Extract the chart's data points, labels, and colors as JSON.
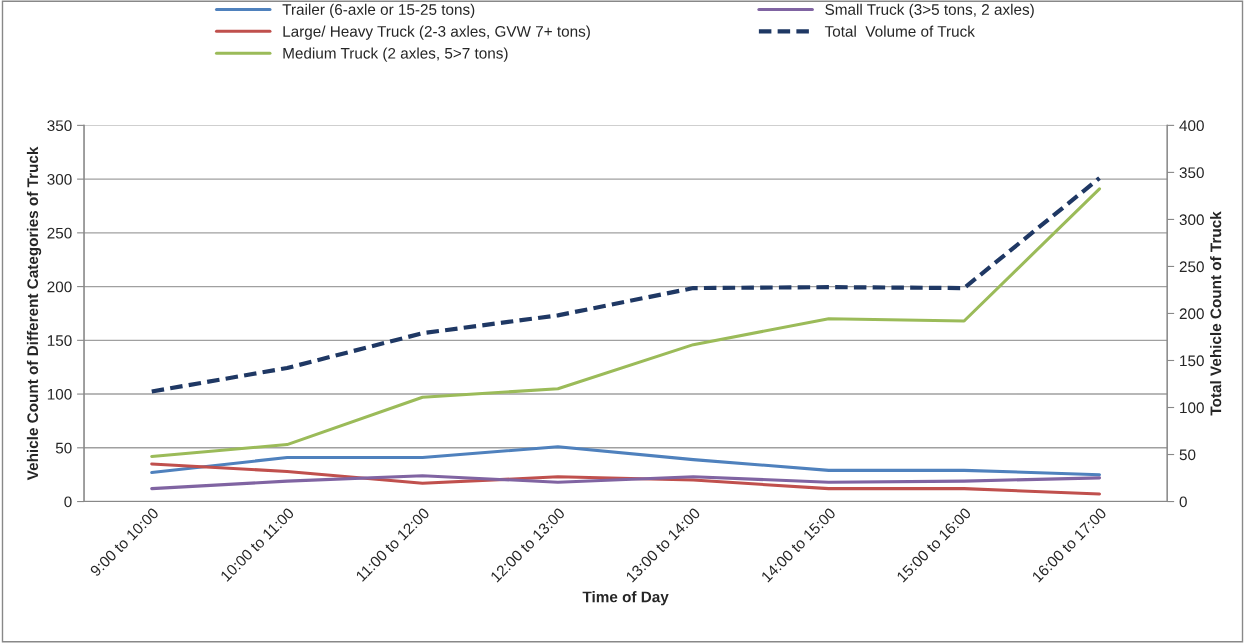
{
  "chart_data": {
    "type": "line",
    "xlabel": "Time of Day",
    "ylabel": "Vehicle Count of Different Categories of Truck",
    "y2label": "Total Vehicle Count of Truck",
    "categories": [
      "9:00 to 10:00",
      "10:00 to 11:00",
      "11:00 to 12:00",
      "12:00 to 13:00",
      "13:00 to 14:00",
      "14:00 to 15:00",
      "15:00 to 16:00",
      "16:00 to 17:00"
    ],
    "series": [
      {
        "name": "Trailer (6-axle or 15-25 tons)",
        "color": "#4f81bd",
        "values": [
          27,
          41,
          41,
          51,
          39,
          29,
          29,
          25
        ]
      },
      {
        "name": "Large/ Heavy Truck (2-3 axles, GVW 7+ tons)",
        "color": "#c0504d",
        "values": [
          35,
          28,
          17,
          23,
          20,
          12,
          12,
          7
        ]
      },
      {
        "name": "Medium Truck (2 axles, 5>7 tons)",
        "color": "#9bbb59",
        "values": [
          42,
          53,
          97,
          105,
          146,
          170,
          168,
          291
        ]
      },
      {
        "name": "Small Truck (3>5 tons, 2 axles)",
        "color": "#8064a2",
        "values": [
          12,
          19,
          24,
          18,
          23,
          18,
          19,
          22
        ]
      },
      {
        "name": "Total  Volume of Truck",
        "color": "#1f3864",
        "axis": "y2",
        "line_style": "dashed",
        "values": [
          117,
          142,
          179,
          198,
          227,
          228,
          227,
          344
        ]
      }
    ],
    "ylim": [
      0,
      350
    ],
    "yticks": [
      0,
      50,
      100,
      150,
      200,
      250,
      300,
      350
    ],
    "y2lim": [
      0,
      400
    ],
    "y2ticks": [
      0,
      50,
      100,
      150,
      200,
      250,
      300,
      350,
      400
    ],
    "grid": "y",
    "legend": "top",
    "marker": "none"
  }
}
